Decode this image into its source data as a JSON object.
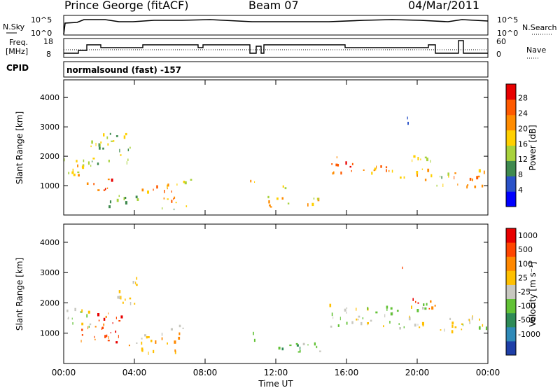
{
  "header": {
    "station": "Prince George (fitACF)",
    "beam": "Beam 07",
    "date": "04/Mar/2011"
  },
  "labels": {
    "nsky": "N.Sky",
    "nsearch": "N.Search",
    "freq": "Freq.",
    "freq_unit": "[MHz]",
    "nave": "Nave",
    "cpid": "CPID",
    "cpid_value": "normalsound (fast) -157",
    "left_ticks_top": [
      "10^5",
      "10^0"
    ],
    "right_ticks_top": [
      "10^5",
      "10^0"
    ],
    "freq_ticks": [
      "18",
      "8"
    ],
    "nave_ticks": [
      "60",
      "0"
    ]
  },
  "chart_data": [
    {
      "type": "heatmap",
      "name": "power",
      "xlabel": "Time UT",
      "ylabel": "Slant Range [km]",
      "x_ticks": [
        "00:00",
        "04:00",
        "08:00",
        "12:00",
        "16:00",
        "20:00",
        "00:00"
      ],
      "y_ticks": [
        1000,
        2000,
        3000,
        4000
      ],
      "ylim": [
        0,
        4600
      ],
      "xlim_hours": [
        0,
        24
      ],
      "colorbar": {
        "label": "Power [dB]",
        "ticks": [
          "28",
          "24",
          "20",
          "16",
          "12",
          "8",
          "4"
        ],
        "colors": [
          "#0000ff",
          "#2a52c8",
          "#3f8a4f",
          "#a8d23c",
          "#ffd000",
          "#ff8c00",
          "#ff5a00",
          "#e80000"
        ]
      },
      "blobs": [
        {
          "t0": 0.0,
          "t1": 1.5,
          "r0": 1100,
          "r1": 2000,
          "level": 4
        },
        {
          "t0": 1.3,
          "t1": 2.8,
          "r0": 800,
          "r1": 1300,
          "level": 6
        },
        {
          "t0": 1.5,
          "t1": 3.8,
          "r0": 1700,
          "r1": 2800,
          "level": 3
        },
        {
          "t0": 2.0,
          "t1": 3.5,
          "r0": 300,
          "r1": 700,
          "level": 2
        },
        {
          "t0": 3.5,
          "t1": 4.3,
          "r0": 550,
          "r1": 750,
          "level": 2
        },
        {
          "t0": 4.3,
          "t1": 6.5,
          "r0": 450,
          "r1": 1100,
          "level": 5
        },
        {
          "t0": 5.5,
          "t1": 7.0,
          "r0": 180,
          "r1": 350,
          "level": 3
        },
        {
          "t0": 6.0,
          "t1": 7.2,
          "r0": 1050,
          "r1": 1300,
          "level": 3
        },
        {
          "t0": 10.5,
          "t1": 11.2,
          "r0": 1050,
          "r1": 1250,
          "level": 5
        },
        {
          "t0": 11.5,
          "t1": 14.8,
          "r0": 300,
          "r1": 650,
          "level": 4
        },
        {
          "t0": 12.0,
          "t1": 13.0,
          "r0": 900,
          "r1": 1100,
          "level": 3
        },
        {
          "t0": 15.0,
          "t1": 16.5,
          "r0": 1350,
          "r1": 2000,
          "level": 6
        },
        {
          "t0": 16.5,
          "t1": 18.5,
          "r0": 1300,
          "r1": 1700,
          "level": 5
        },
        {
          "t0": 18.5,
          "t1": 20.8,
          "r0": 1200,
          "r1": 1600,
          "level": 5
        },
        {
          "t0": 19.0,
          "t1": 19.6,
          "r0": 3150,
          "r1": 3400,
          "level": 2
        },
        {
          "t0": 19.5,
          "t1": 21.0,
          "r0": 1700,
          "r1": 2100,
          "level": 4
        },
        {
          "t0": 21.0,
          "t1": 22.0,
          "r0": 1000,
          "r1": 1500,
          "level": 3
        },
        {
          "t0": 22.0,
          "t1": 24.0,
          "r0": 1000,
          "r1": 1600,
          "level": 5
        }
      ]
    },
    {
      "type": "heatmap",
      "name": "velocity",
      "xlabel": "Time UT",
      "ylabel": "Slant Range [km]",
      "x_ticks": [
        "00:00",
        "04:00",
        "08:00",
        "12:00",
        "16:00",
        "20:00",
        "00:00"
      ],
      "y_ticks": [
        1000,
        2000,
        3000,
        4000
      ],
      "ylim": [
        0,
        4600
      ],
      "xlim_hours": [
        0,
        24
      ],
      "colorbar": {
        "label": "Velocity [m s⁻¹]",
        "ticks": [
          "1000",
          "500",
          "100",
          "25",
          "-25",
          "-100",
          "-500",
          "-1000"
        ],
        "colors": [
          "#1e3fa8",
          "#2f8ab8",
          "#2e8b57",
          "#62c236",
          "#c8c8c0",
          "#ffc000",
          "#ff8800",
          "#ff4500",
          "#e80000"
        ]
      },
      "blobs": [
        {
          "t0": 0.0,
          "t1": 1.5,
          "r0": 1200,
          "r1": 2000,
          "level": 4
        },
        {
          "t0": 0.9,
          "t1": 3.3,
          "r0": 700,
          "r1": 1700,
          "level": 7
        },
        {
          "t0": 3.0,
          "t1": 4.2,
          "r0": 2000,
          "r1": 3000,
          "level": 4
        },
        {
          "t0": 3.2,
          "t1": 4.2,
          "r0": 550,
          "r1": 750,
          "level": 5
        },
        {
          "t0": 4.3,
          "t1": 6.6,
          "r0": 350,
          "r1": 1100,
          "level": 5
        },
        {
          "t0": 6.0,
          "t1": 7.2,
          "r0": 1050,
          "r1": 1300,
          "level": 4
        },
        {
          "t0": 10.5,
          "t1": 11.2,
          "r0": 750,
          "r1": 1050,
          "level": 4
        },
        {
          "t0": 11.5,
          "t1": 14.8,
          "r0": 350,
          "r1": 700,
          "level": 3
        },
        {
          "t0": 15.0,
          "t1": 20.5,
          "r0": 1200,
          "r1": 2000,
          "level": 4
        },
        {
          "t0": 19.0,
          "t1": 19.5,
          "r0": 3150,
          "r1": 3400,
          "level": 6
        },
        {
          "t0": 19.5,
          "t1": 21.0,
          "r0": 1800,
          "r1": 2200,
          "level": 7
        },
        {
          "t0": 21.0,
          "t1": 24.0,
          "r0": 1000,
          "r1": 1600,
          "level": 4
        }
      ]
    }
  ]
}
